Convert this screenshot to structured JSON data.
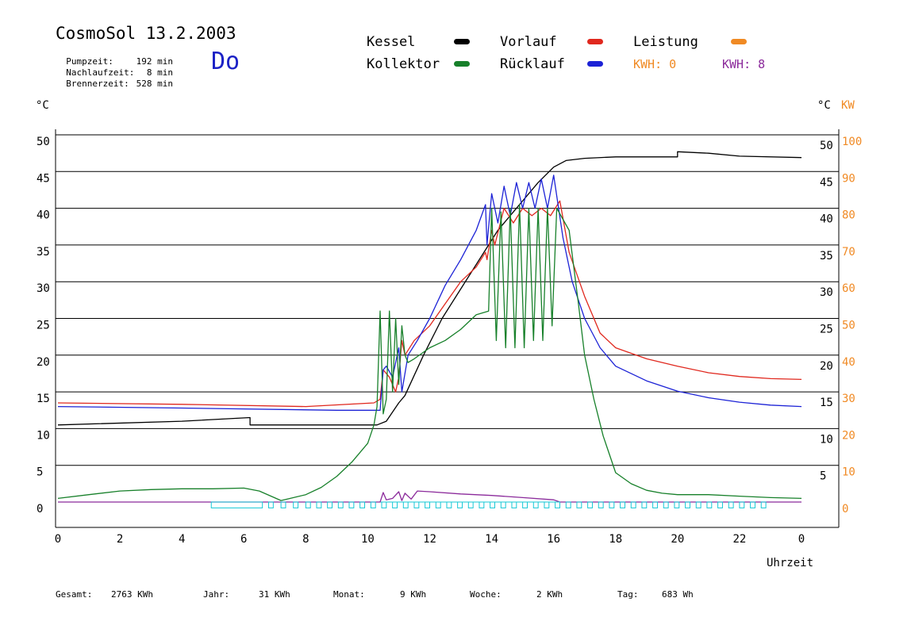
{
  "header": {
    "title": "CosmoSol 13.2.2003",
    "info": [
      {
        "label": "Pumpzeit:",
        "value": "192 min"
      },
      {
        "label": "Nachlaufzeit:",
        "value": "8 min"
      },
      {
        "label": "Brennerzeit:",
        "value": "528 min"
      }
    ],
    "day": "Do"
  },
  "legend": {
    "kessel": {
      "label": "Kessel",
      "color": "#000000"
    },
    "vorlauf": {
      "label": "Vorlauf",
      "color": "#e0281e"
    },
    "leistung": {
      "label": "Leistung",
      "color": "#f08a24"
    },
    "kollektor": {
      "label": "Kollektor",
      "color": "#17802a"
    },
    "ruecklauf": {
      "label": "Rücklauf",
      "color": "#1c22d6"
    },
    "kwh1": {
      "text": "KWH: 0",
      "color": "#f08a24"
    },
    "kwh2": {
      "text": "KWH: 8",
      "color": "#8b2a9b"
    }
  },
  "axes": {
    "left_unit": "°C",
    "right_unit": "°C",
    "right_unit2": "KW",
    "xlabel": "Uhrzeit"
  },
  "footer": {
    "gesamt_label": "Gesamt:",
    "gesamt_value": "2763 KWh",
    "jahr_label": "Jahr:",
    "jahr_value": "31 KWh",
    "monat_label": "Monat:",
    "monat_value": "9 KWh",
    "woche_label": "Woche:",
    "woche_value": "2 KWh",
    "tag_label": "Tag:",
    "tag_value": "683 Wh"
  },
  "chart_data": {
    "type": "line",
    "x_range": [
      0,
      24
    ],
    "y_range": [
      0,
      50
    ],
    "y2_range": [
      0,
      100
    ],
    "grid": true,
    "x_ticks": [
      "0",
      "2",
      "4",
      "6",
      "8",
      "10",
      "12",
      "14",
      "16",
      "18",
      "20",
      "22",
      "0"
    ],
    "y_ticks": [
      "0",
      "5",
      "10",
      "15",
      "20",
      "25",
      "30",
      "35",
      "40",
      "45",
      "50"
    ],
    "y_ticks_right": [
      "5",
      "10",
      "15",
      "20",
      "25",
      "30",
      "35",
      "40",
      "45",
      "50"
    ],
    "y2_ticks": [
      "0",
      "10",
      "20",
      "30",
      "40",
      "50",
      "60",
      "70",
      "80",
      "90",
      "100"
    ],
    "series": [
      {
        "name": "Kessel",
        "color": "#000000",
        "x": [
          0,
          4,
          6.2,
          6.2,
          7.4,
          9.3,
          10.3,
          10.6,
          11.0,
          11.2,
          11.8,
          12.4,
          13.0,
          13.6,
          14.2,
          14.8,
          15.5,
          16.0,
          16.4,
          17.0,
          18.0,
          20.0,
          20.0,
          21.0,
          22.0,
          24.0
        ],
        "y": [
          10.5,
          11.0,
          11.5,
          10.5,
          10.5,
          10.5,
          10.5,
          11.0,
          13.5,
          14.5,
          20.0,
          25.0,
          29.0,
          33.0,
          37.0,
          40.0,
          43.5,
          45.6,
          46.5,
          46.8,
          47.0,
          47.0,
          47.7,
          47.5,
          47.1,
          46.9
        ]
      },
      {
        "name": "Vorlauf",
        "color": "#e0281e",
        "x": [
          0,
          4,
          8,
          10.2,
          10.4,
          10.5,
          10.7,
          10.9,
          11.0,
          11.1,
          11.2,
          11.5,
          12.0,
          12.5,
          13.0,
          13.5,
          13.8,
          13.85,
          14.0,
          14.1,
          14.4,
          14.7,
          15.0,
          15.3,
          15.6,
          15.9,
          16.2,
          16.5,
          17.0,
          17.5,
          18.0,
          19.0,
          20.0,
          21.0,
          22.0,
          23.0,
          24.0
        ],
        "y": [
          13.5,
          13.3,
          13.0,
          13.5,
          14.0,
          18.0,
          17.0,
          15.0,
          17.0,
          22.0,
          20.0,
          22.0,
          24.0,
          27.0,
          30.0,
          32.0,
          34.0,
          33.0,
          37.0,
          35.0,
          40.0,
          38.0,
          40.0,
          39.0,
          40.0,
          39.0,
          41.0,
          34.0,
          28.0,
          23.0,
          21.0,
          19.5,
          18.5,
          17.6,
          17.1,
          16.8,
          16.7
        ]
      },
      {
        "name": "Rücklauf",
        "color": "#1c22d6",
        "x": [
          0,
          4,
          9,
          10.2,
          10.4,
          10.5,
          10.6,
          10.8,
          11.0,
          11.1,
          11.3,
          11.6,
          12.0,
          12.5,
          13.0,
          13.5,
          13.8,
          13.85,
          14.0,
          14.2,
          14.4,
          14.6,
          14.8,
          15.0,
          15.2,
          15.4,
          15.6,
          15.8,
          16.0,
          16.3,
          16.6,
          17.0,
          17.5,
          18.0,
          19.0,
          20.0,
          21.0,
          22.0,
          23.0,
          24.0
        ],
        "y": [
          13.0,
          12.8,
          12.5,
          12.5,
          12.5,
          18.0,
          18.5,
          17.0,
          21.0,
          15.0,
          20.0,
          22.0,
          25.0,
          29.5,
          33.0,
          37.0,
          40.5,
          35.0,
          42.0,
          38.0,
          43.0,
          39.0,
          43.5,
          40.0,
          43.5,
          40.0,
          44.0,
          40.0,
          44.5,
          36.0,
          30.0,
          25.0,
          21.0,
          18.5,
          16.5,
          15.1,
          14.2,
          13.6,
          13.2,
          13.0
        ]
      },
      {
        "name": "Kollektor",
        "color": "#17802a",
        "x": [
          0,
          1,
          2,
          3,
          4,
          5,
          6,
          6.5,
          7.2,
          7.5,
          8.0,
          8.5,
          9.0,
          9.5,
          9.8,
          10.0,
          10.2,
          10.3,
          10.4,
          10.5,
          10.6,
          10.7,
          10.8,
          10.9,
          11.0,
          11.1,
          11.2,
          11.3,
          11.5,
          12.0,
          12.5,
          13.0,
          13.5,
          13.9,
          14.0,
          14.15,
          14.3,
          14.45,
          14.6,
          14.75,
          14.9,
          15.05,
          15.2,
          15.35,
          15.5,
          15.65,
          15.8,
          15.95,
          16.1,
          16.3,
          16.5,
          16.8,
          17.0,
          17.3,
          17.6,
          18.0,
          18.5,
          19.0,
          19.5,
          20.0,
          21.0,
          22.0,
          23.0,
          24.0
        ],
        "y": [
          0.5,
          1.0,
          1.5,
          1.7,
          1.8,
          1.8,
          1.9,
          1.5,
          0.2,
          0.5,
          1.0,
          2.0,
          3.5,
          5.5,
          7.0,
          8.0,
          10.5,
          13.0,
          26.0,
          12.0,
          14.0,
          26.0,
          15.0,
          25.0,
          16.0,
          24.0,
          20.0,
          19.0,
          19.5,
          21.0,
          22.0,
          23.5,
          25.5,
          26.0,
          40.0,
          22.0,
          39.5,
          21.0,
          40.0,
          21.0,
          40.5,
          21.0,
          40.0,
          22.0,
          40.0,
          22.0,
          40.0,
          24.0,
          40.0,
          38.5,
          37.0,
          27.0,
          20.0,
          14.0,
          9.0,
          4.0,
          2.5,
          1.6,
          1.2,
          1.0,
          1.0,
          0.8,
          0.6,
          0.5
        ]
      },
      {
        "name": "Leistung",
        "color": "#8b2a9b",
        "x": [
          0,
          10.4,
          10.5,
          10.6,
          10.8,
          11.0,
          11.1,
          11.2,
          11.4,
          11.6,
          12.0,
          13.0,
          14.0,
          15.0,
          16.0,
          16.2,
          24.0
        ],
        "y": [
          0,
          0,
          1.3,
          0.3,
          0.5,
          1.4,
          0.2,
          1.2,
          0.4,
          1.5,
          1.4,
          1.1,
          0.9,
          0.6,
          0.3,
          0,
          0
        ]
      },
      {
        "name": "Pumpe",
        "color": "#16c8d6",
        "pulses": [
          [
            4.95,
            6.6
          ],
          [
            6.8,
            6.95
          ],
          [
            7.2,
            7.35
          ],
          [
            7.6,
            7.75
          ],
          [
            8.0,
            8.15
          ],
          [
            8.35,
            8.5
          ],
          [
            8.7,
            8.85
          ],
          [
            9.05,
            9.2
          ],
          [
            9.4,
            9.55
          ],
          [
            9.75,
            9.9
          ],
          [
            10.1,
            10.25
          ],
          [
            10.45,
            10.6
          ],
          [
            10.8,
            10.95
          ],
          [
            11.15,
            11.3
          ],
          [
            11.5,
            11.65
          ],
          [
            11.85,
            12.0
          ],
          [
            12.2,
            12.35
          ],
          [
            12.55,
            12.7
          ],
          [
            12.9,
            13.05
          ],
          [
            13.25,
            13.4
          ],
          [
            13.6,
            13.75
          ],
          [
            13.95,
            14.1
          ],
          [
            14.3,
            14.45
          ],
          [
            14.65,
            14.8
          ],
          [
            15.0,
            15.15
          ],
          [
            15.35,
            15.5
          ],
          [
            15.7,
            15.85
          ],
          [
            16.05,
            16.2
          ],
          [
            16.4,
            16.55
          ],
          [
            16.75,
            16.9
          ],
          [
            17.1,
            17.25
          ],
          [
            17.45,
            17.6
          ],
          [
            17.8,
            17.95
          ],
          [
            18.15,
            18.3
          ],
          [
            18.5,
            18.65
          ],
          [
            18.85,
            19.0
          ],
          [
            19.2,
            19.35
          ],
          [
            19.55,
            19.7
          ],
          [
            19.9,
            20.05
          ],
          [
            20.25,
            20.4
          ],
          [
            20.6,
            20.75
          ],
          [
            20.95,
            21.1
          ],
          [
            21.3,
            21.45
          ],
          [
            21.65,
            21.8
          ],
          [
            22.0,
            22.15
          ],
          [
            22.35,
            22.5
          ],
          [
            22.7,
            22.85
          ]
        ],
        "y_low": -0.8
      }
    ]
  }
}
